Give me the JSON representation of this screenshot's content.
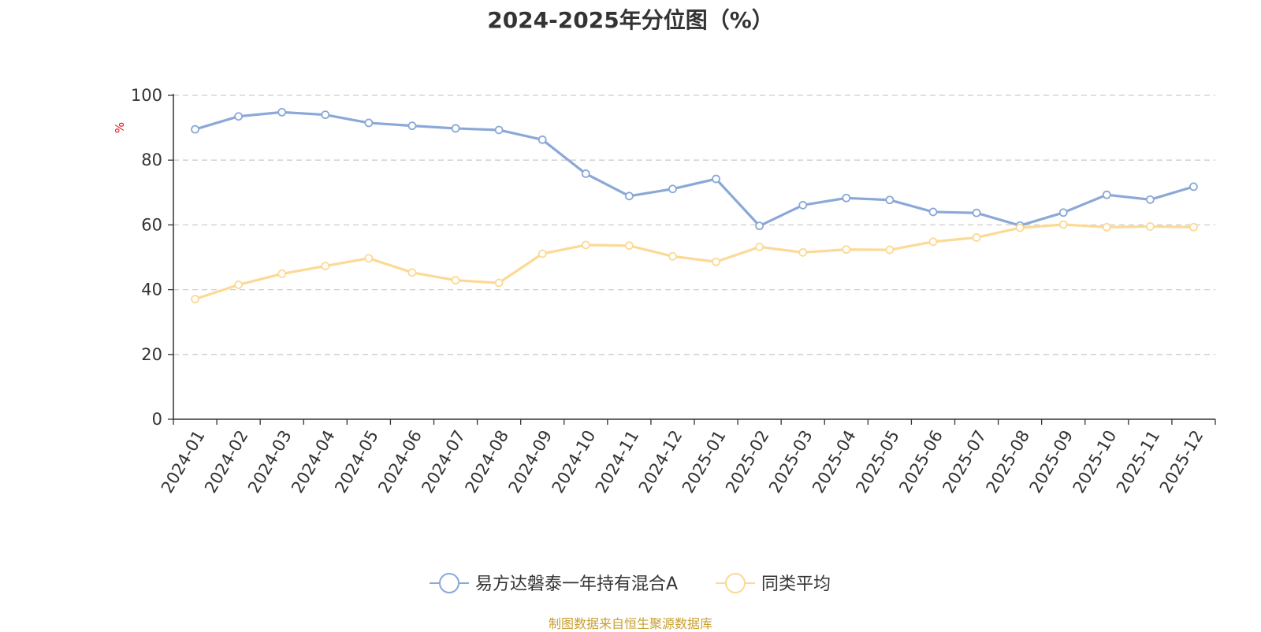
{
  "chart_data": {
    "type": "line",
    "title": "2024-2025年分位图（%）",
    "ylabel": "%",
    "ylim": [
      0,
      100
    ],
    "yticks": [
      0,
      20,
      40,
      60,
      80,
      100
    ],
    "grid": "horizontal dashed",
    "legend_position": "bottom-center",
    "categories": [
      "2024-01",
      "2024-02",
      "2024-03",
      "2024-04",
      "2024-05",
      "2024-06",
      "2024-07",
      "2024-08",
      "2024-09",
      "2024-10",
      "2024-11",
      "2024-12",
      "2025-01",
      "2025-02",
      "2025-03",
      "2025-04",
      "2025-05",
      "2025-06",
      "2025-07",
      "2025-08",
      "2025-09",
      "2025-10",
      "2025-11",
      "2025-12"
    ],
    "series": [
      {
        "name": "易方达磐泰一年持有混合A",
        "color": "#8aa8d8",
        "values": [
          89.5,
          93.5,
          94.8,
          94.0,
          91.5,
          90.6,
          89.8,
          89.3,
          86.3,
          75.8,
          68.9,
          71.1,
          74.2,
          59.7,
          66.1,
          68.3,
          67.7,
          64.0,
          63.7,
          59.8,
          63.8,
          69.3,
          67.8,
          71.8
        ]
      },
      {
        "name": "同类平均",
        "color": "#fcd995",
        "values": [
          37.1,
          41.5,
          44.9,
          47.3,
          49.7,
          45.3,
          42.9,
          42.1,
          51.1,
          53.8,
          53.6,
          50.3,
          48.6,
          53.2,
          51.5,
          52.4,
          52.3,
          54.8,
          56.1,
          59.1,
          60.1,
          59.3,
          59.5,
          59.3
        ]
      }
    ]
  },
  "source_text": "制图数据来自恒生聚源数据库"
}
